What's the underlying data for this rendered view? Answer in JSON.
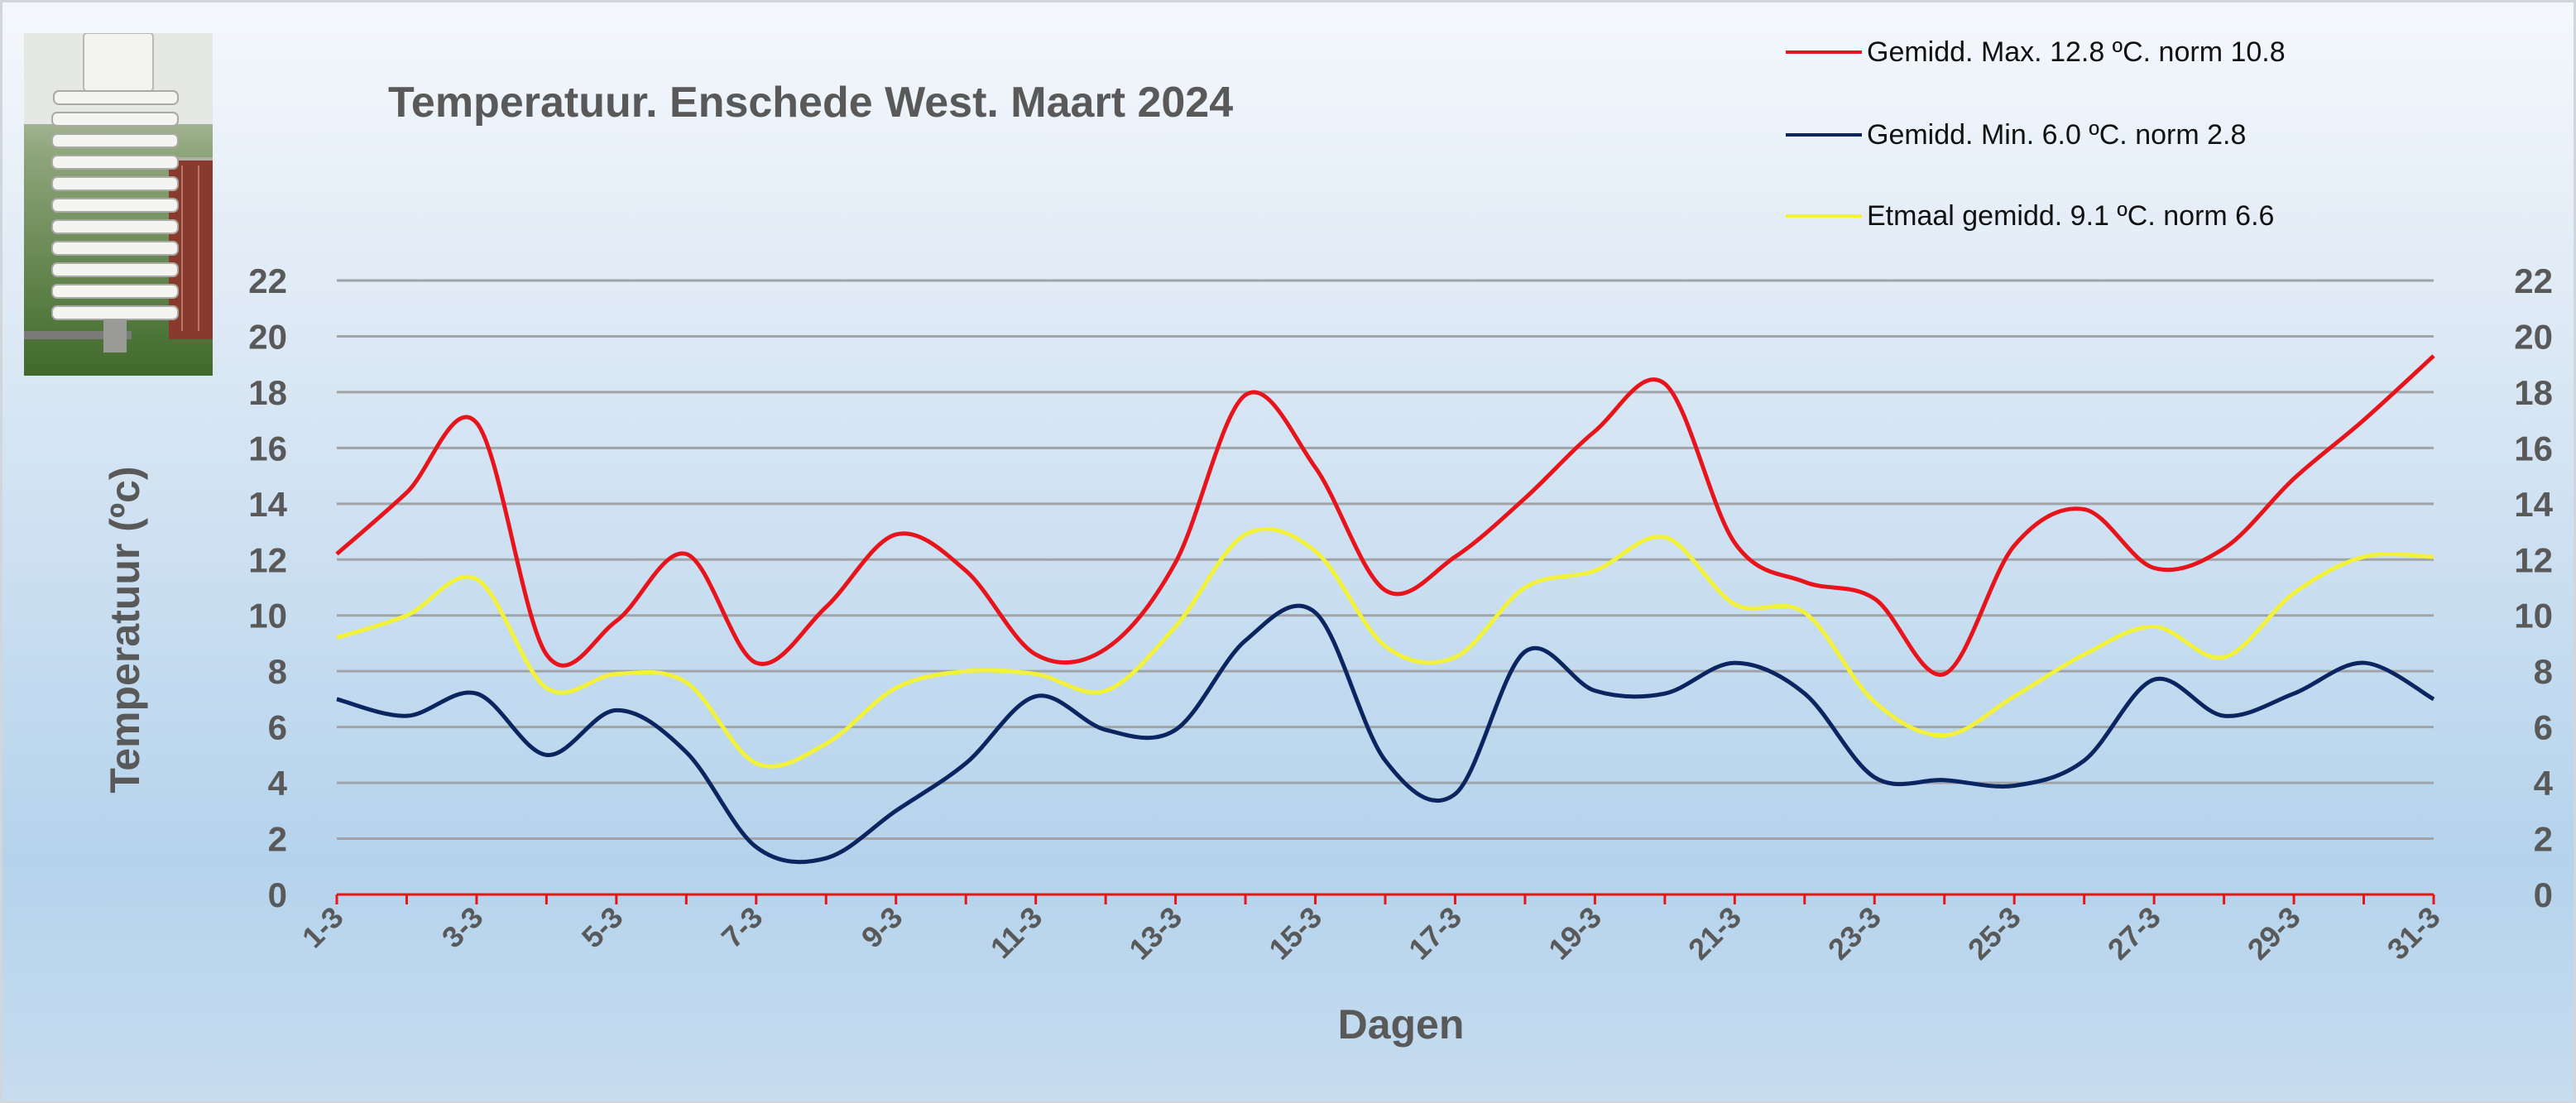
{
  "chart_data": {
    "type": "line",
    "title": "Temperatuur. Enschede West. Maart 2024",
    "xlabel": "Dagen",
    "ylabel": "Temperatuur (ºc)",
    "ylim": [
      0,
      22
    ],
    "yticks": [
      0,
      2,
      4,
      6,
      8,
      10,
      12,
      14,
      16,
      18,
      20,
      22
    ],
    "y_axis_right": true,
    "grid": true,
    "legend_position": "top-right",
    "x": [
      "1-3",
      "2-3",
      "3-3",
      "4-3",
      "5-3",
      "6-3",
      "7-3",
      "8-3",
      "9-3",
      "10-3",
      "11-3",
      "12-3",
      "13-3",
      "14-3",
      "15-3",
      "16-3",
      "17-3",
      "18-3",
      "19-3",
      "20-3",
      "21-3",
      "22-3",
      "23-3",
      "24-3",
      "25-3",
      "26-3",
      "27-3",
      "28-3",
      "29-3",
      "30-3",
      "31-3"
    ],
    "x_tick_labels": [
      "1-3",
      "3-3",
      "5-3",
      "7-3",
      "9-3",
      "11-3",
      "13-3",
      "15-3",
      "17-3",
      "19-3",
      "21-3",
      "23-3",
      "25-3",
      "27-3",
      "29-3",
      "31-3"
    ],
    "series": [
      {
        "name": "Gemidd. Max. 12.8  ºC. norm 10.8",
        "color": "#e8141b",
        "values": [
          12.2,
          14.4,
          16.9,
          8.6,
          9.8,
          12.2,
          8.3,
          10.3,
          12.9,
          11.6,
          8.6,
          8.8,
          11.9,
          17.9,
          15.3,
          10.9,
          12.1,
          14.2,
          16.6,
          18.3,
          12.6,
          11.2,
          10.6,
          7.9,
          12.5,
          13.8,
          11.7,
          12.4,
          14.9,
          17.0,
          19.3
        ]
      },
      {
        "name": "Gemidd. Min. 6.0  ºC. norm 2.8",
        "color": "#0b2560",
        "values": [
          7.0,
          6.4,
          7.2,
          5.0,
          6.6,
          5.1,
          1.7,
          1.3,
          3.0,
          4.7,
          7.1,
          5.9,
          5.9,
          9.1,
          10.1,
          4.8,
          3.6,
          8.7,
          7.3,
          7.2,
          8.3,
          7.2,
          4.2,
          4.1,
          3.9,
          4.8,
          7.7,
          6.4,
          7.2,
          8.3,
          7.0
        ]
      },
      {
        "name": "Etmaal gemidd. 9.1  ºC. norm 6.6",
        "color": "#f2f23a",
        "values": [
          9.2,
          10.0,
          11.3,
          7.4,
          7.9,
          7.6,
          4.7,
          5.4,
          7.4,
          8.0,
          7.9,
          7.3,
          9.6,
          12.9,
          12.3,
          8.9,
          8.5,
          11.0,
          11.6,
          12.8,
          10.4,
          10.1,
          6.9,
          5.7,
          7.1,
          8.6,
          9.6,
          8.5,
          10.8,
          12.1,
          12.1
        ]
      }
    ]
  },
  "photo": {
    "description_icon": "weather-station-photo"
  }
}
